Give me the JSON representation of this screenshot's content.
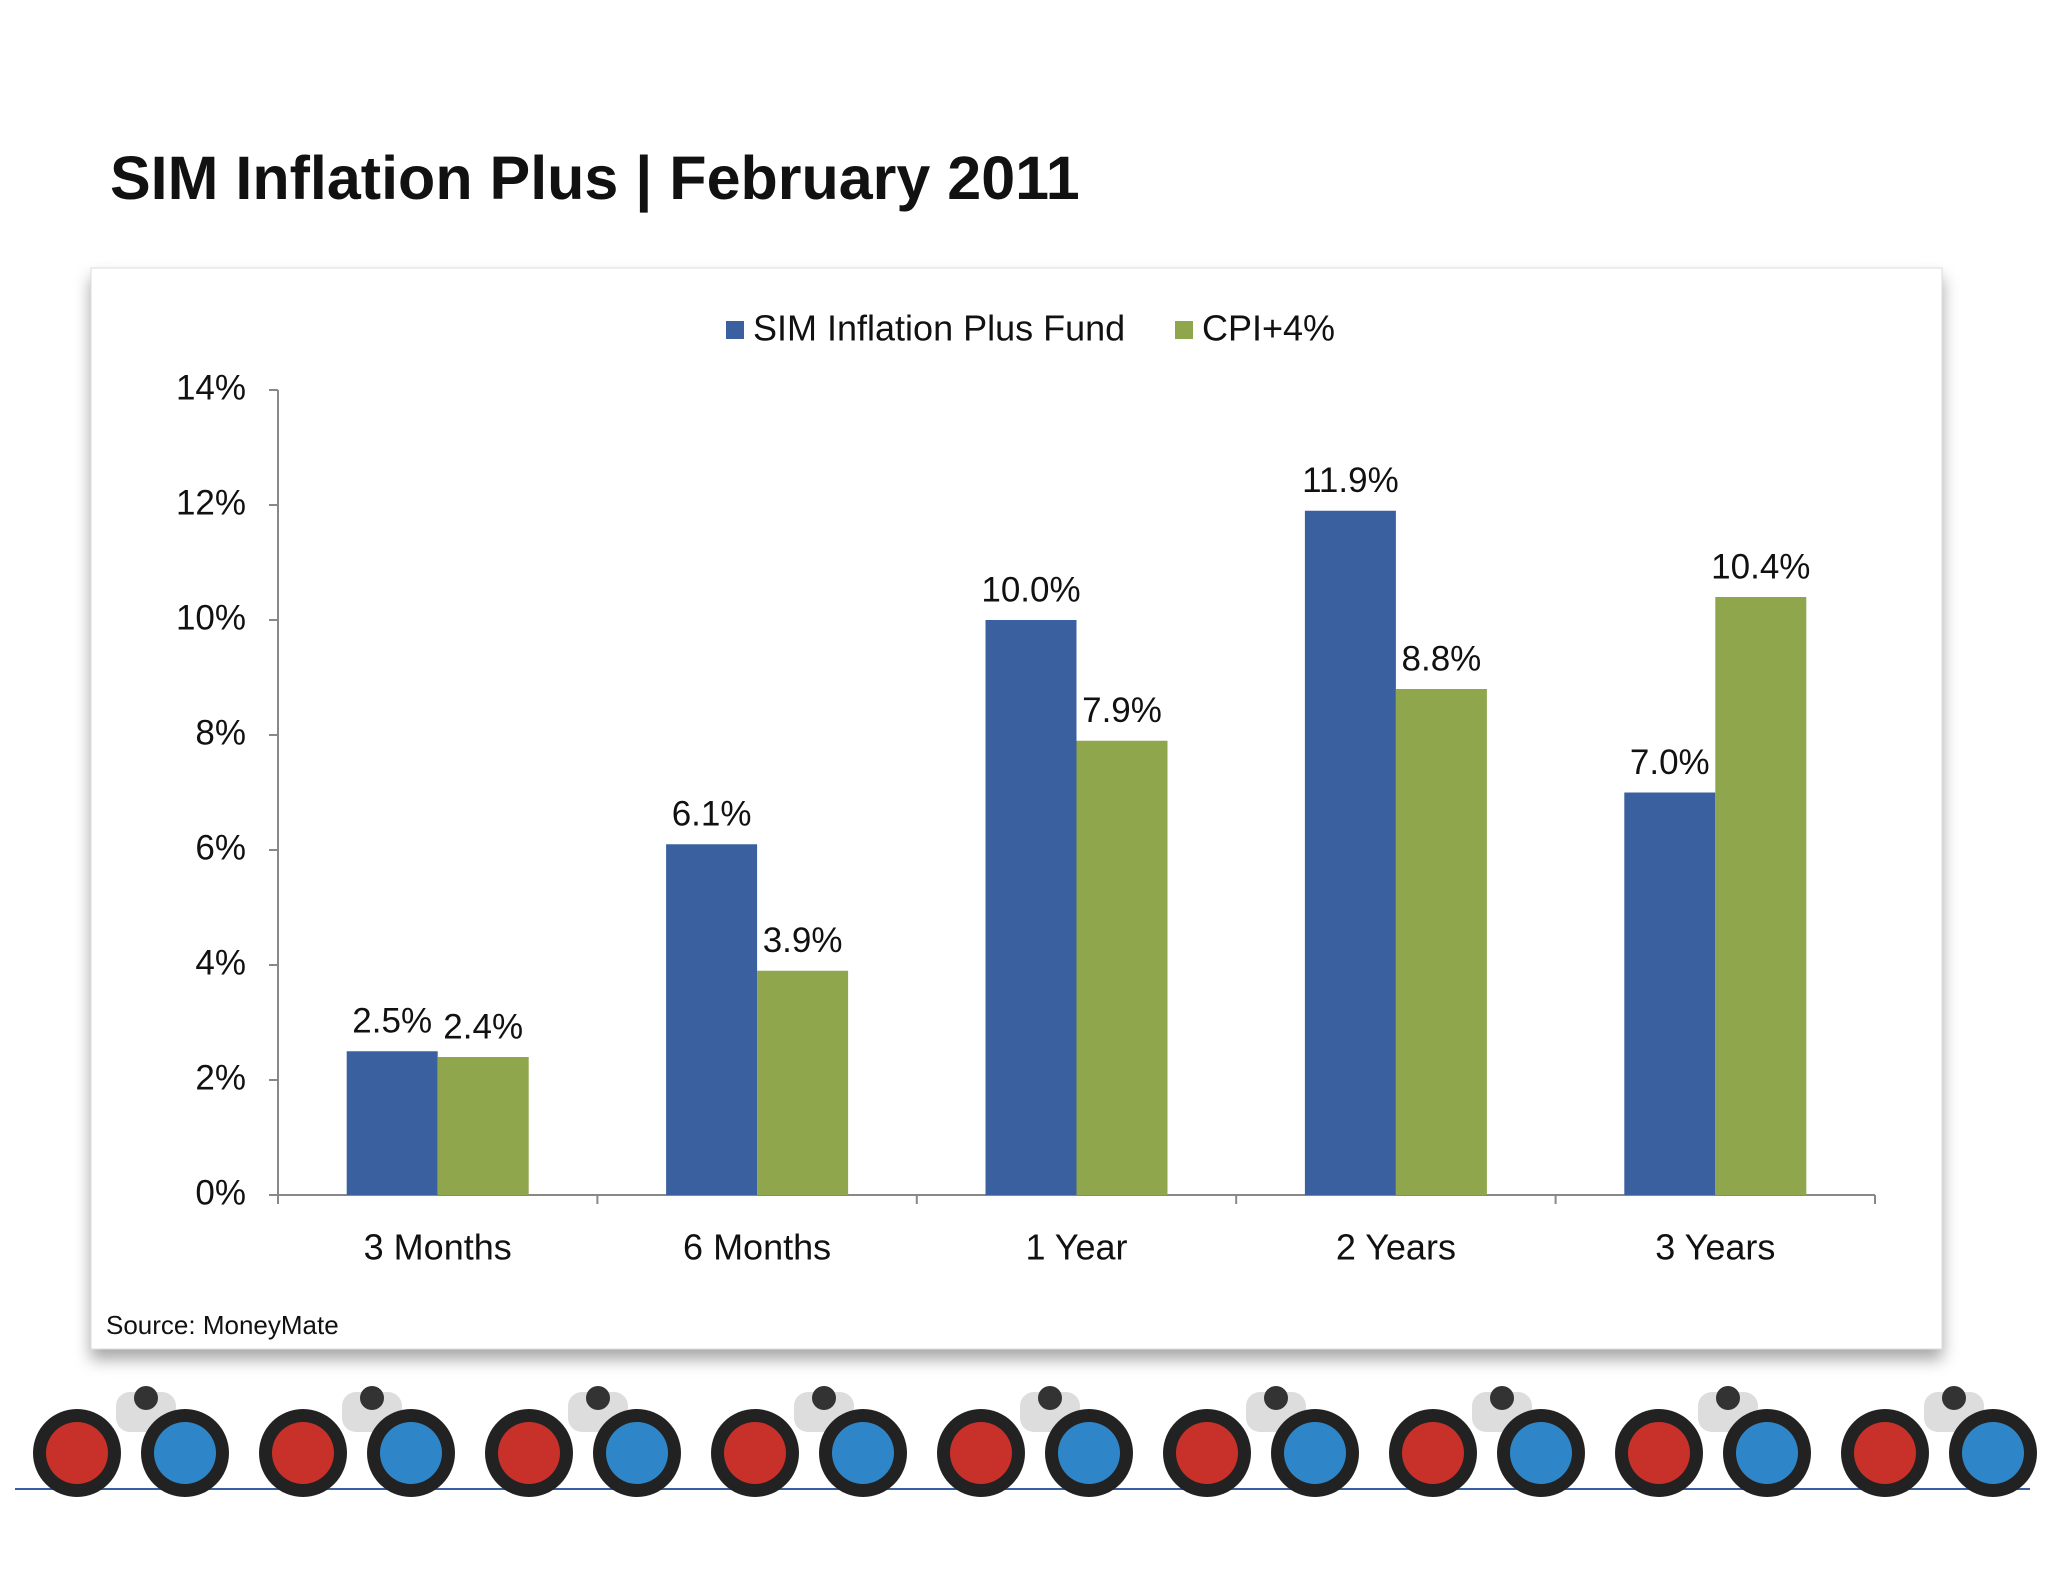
{
  "chart_data": {
    "type": "bar",
    "title": "SIM Inflation Plus | February 2011",
    "source": "Source: MoneyMate",
    "categories": [
      "3 Months",
      "6 Months",
      "1 Year",
      "2 Years",
      "3 Years"
    ],
    "series": [
      {
        "name": "SIM Inflation Plus Fund",
        "color": "#3a609f",
        "values": [
          2.5,
          6.1,
          10.0,
          11.9,
          7.0
        ],
        "value_labels": [
          "2.5%",
          "6.1%",
          "10.0%",
          "11.9%",
          "7.0%"
        ]
      },
      {
        "name": "CPI+4%",
        "color": "#8fa64c",
        "values": [
          2.4,
          3.9,
          7.9,
          8.8,
          10.4
        ],
        "value_labels": [
          "2.4%",
          "3.9%",
          "7.9%",
          "8.8%",
          "10.4%"
        ]
      }
    ],
    "ylim": [
      0,
      14
    ],
    "yticks": [
      {
        "value": 0,
        "label": "0%"
      },
      {
        "value": 2,
        "label": "2%"
      },
      {
        "value": 4,
        "label": "4%"
      },
      {
        "value": 6,
        "label": "6%"
      },
      {
        "value": 8,
        "label": "8%"
      },
      {
        "value": 10,
        "label": "10%"
      },
      {
        "value": 12,
        "label": "12%"
      },
      {
        "value": 14,
        "label": "14%"
      }
    ],
    "legend": "top"
  }
}
